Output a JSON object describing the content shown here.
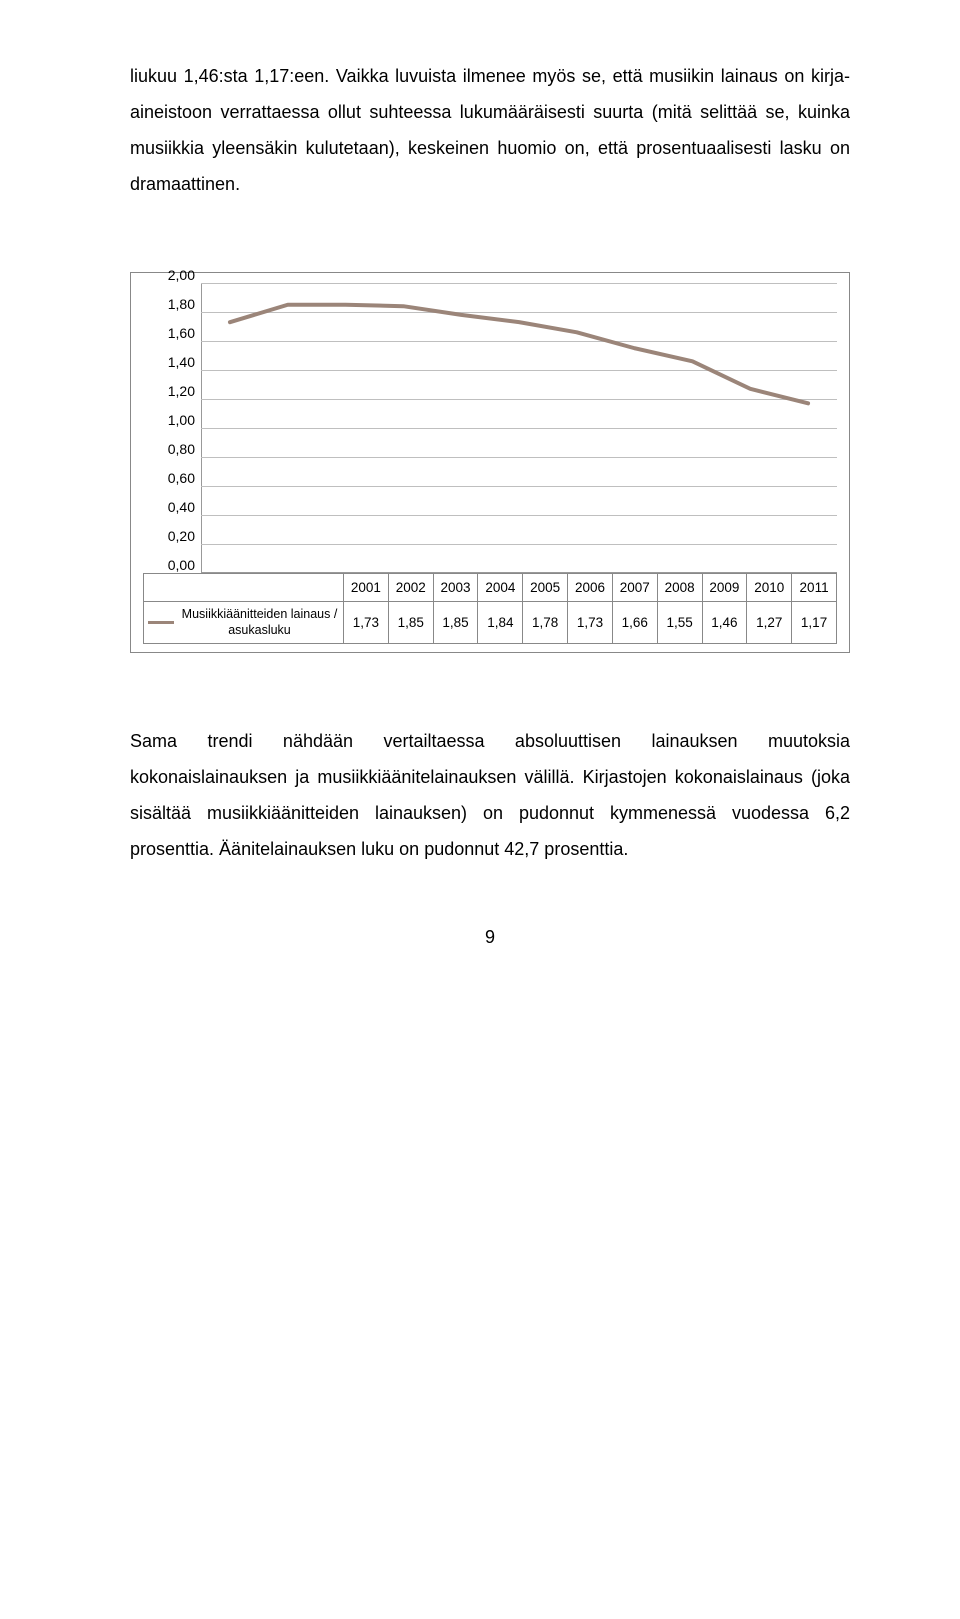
{
  "para1": "liukuu 1,46:sta 1,17:een. Vaikka luvuista ilmenee myös se, että musiikin lainaus on kirja-aineistoon verrattaessa ollut suhteessa lukumääräisesti suurta (mitä selittää se, kuinka musiikkia yleensäkin kulutetaan), keskeinen huomio on, että prosentuaalisesti lasku on dramaattinen.",
  "para2": "Sama trendi nähdään vertailtaessa absoluuttisen lainauksen muutoksia kokonaislainauksen ja musiikkiäänitelainauksen välillä. Kirjastojen kokonaislainaus (joka sisältää musiikkiäänitteiden lainauksen) on pudonnut kymmenessä vuodessa 6,2 prosenttia. Äänitelainauksen luku on pudonnut 42,7 prosenttia.",
  "pagenum": "9",
  "chart": {
    "type": "line",
    "series_label": "Musiikkiäänitteiden lainaus / asukasluku",
    "line_color": "#9b8579",
    "line_width": 4,
    "grid_color": "#bfbfbf",
    "border_color": "#999999",
    "background_color": "#ffffff",
    "font_size_axis": 14,
    "font_size_table": 13.5,
    "ylim": [
      0,
      2.0
    ],
    "ytick_step": 0.2,
    "yticks": [
      "2,00",
      "1,80",
      "1,60",
      "1,40",
      "1,20",
      "1,00",
      "0,80",
      "0,60",
      "0,40",
      "0,20",
      "0,00"
    ],
    "categories": [
      "2001",
      "2002",
      "2003",
      "2004",
      "2005",
      "2006",
      "2007",
      "2008",
      "2009",
      "2010",
      "2011"
    ],
    "values_display": [
      "1,73",
      "1,85",
      "1,85",
      "1,84",
      "1,78",
      "1,73",
      "1,66",
      "1,55",
      "1,46",
      "1,27",
      "1,17"
    ],
    "values": [
      1.73,
      1.85,
      1.85,
      1.84,
      1.78,
      1.73,
      1.66,
      1.55,
      1.46,
      1.27,
      1.17
    ]
  }
}
